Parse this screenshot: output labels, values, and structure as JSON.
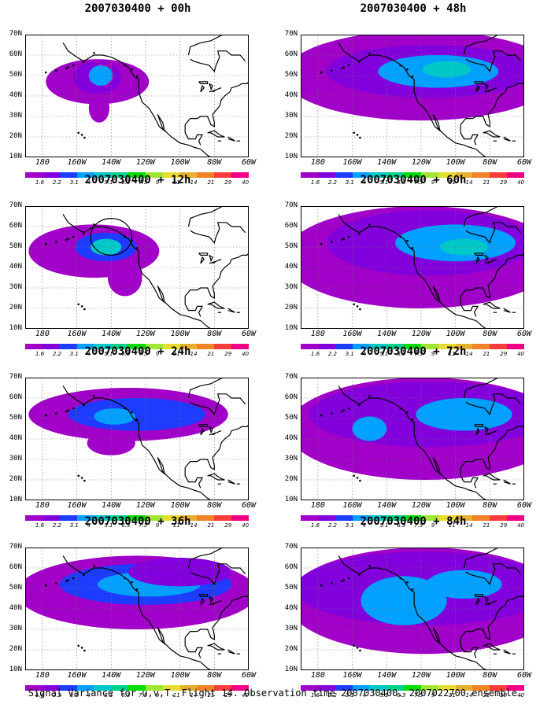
{
  "caption": "Signal Variance for u,v,T. Flight 14. Observation time 2007030400. 2007022700 ensemble.",
  "colors": {
    "levels": [
      "#a000c8",
      "#8200dc",
      "#1e3cff",
      "#00a0ff",
      "#00c8c8",
      "#00d28c",
      "#00dc00",
      "#a0e632",
      "#e6dc32",
      "#e6af2d",
      "#f08228",
      "#fa3c3c",
      "#f00082"
    ]
  },
  "chart_data": {
    "type": "heatmap",
    "ylim": [
      "10N",
      "70N"
    ],
    "xlim": [
      "170E",
      "60W"
    ],
    "y_ticks": [
      "70N",
      "60N",
      "50N",
      "40N",
      "30N",
      "20N",
      "10N"
    ],
    "x_ticks": [
      "180",
      "160W",
      "140W",
      "120W",
      "100W",
      "80W",
      "60W"
    ],
    "colorbar_labels": [
      "1.6",
      "2.2",
      "3.1",
      "4",
      "5.1",
      "6.3",
      "7.5",
      "9",
      "11",
      "14",
      "21",
      "29",
      "40"
    ],
    "panels": [
      {
        "title": "2007030400 + 00h",
        "max_level": 4,
        "blobs": [
          {
            "lon": -148,
            "lat": 47,
            "rx": 30,
            "ry": 11,
            "lvl": 0
          },
          {
            "lon": -148,
            "lat": 49,
            "rx": 14,
            "ry": 8,
            "lvl": 1
          },
          {
            "lon": -146,
            "lat": 50,
            "rx": 7,
            "ry": 5,
            "lvl": 3
          },
          {
            "lon": -147,
            "lat": 34,
            "rx": 6,
            "ry": 7,
            "lvl": 0
          }
        ],
        "flight_track": [
          [
            -150,
            58
          ],
          [
            -146,
            55
          ],
          [
            -140,
            55
          ],
          [
            -139,
            48
          ],
          [
            -144,
            44
          ]
        ]
      },
      {
        "title": "2007030400 + 12h",
        "max_level": 5,
        "blobs": [
          {
            "lon": -150,
            "lat": 48,
            "rx": 38,
            "ry": 13,
            "lvl": 0
          },
          {
            "lon": -132,
            "lat": 35,
            "rx": 10,
            "ry": 9,
            "lvl": 0
          },
          {
            "lon": -143,
            "lat": 50,
            "rx": 18,
            "ry": 7,
            "lvl": 2
          },
          {
            "lon": -143,
            "lat": 50,
            "rx": 9,
            "ry": 4,
            "lvl": 4
          }
        ],
        "circle": {
          "lon": -140,
          "lat": 55,
          "rx": 12,
          "ry": 9
        }
      },
      {
        "title": "2007030400 + 24h",
        "max_level": 5,
        "blobs": [
          {
            "lon": -130,
            "lat": 52,
            "rx": 58,
            "ry": 13,
            "lvl": 0
          },
          {
            "lon": -125,
            "lat": 52,
            "rx": 40,
            "ry": 8,
            "lvl": 2
          },
          {
            "lon": -138,
            "lat": 51,
            "rx": 12,
            "ry": 4,
            "lvl": 3
          },
          {
            "lon": -140,
            "lat": 38,
            "rx": 14,
            "ry": 6,
            "lvl": 0
          }
        ]
      },
      {
        "title": "2007030400 + 36h",
        "max_level": 5,
        "blobs": [
          {
            "lon": -125,
            "lat": 48,
            "rx": 70,
            "ry": 18,
            "lvl": 0
          },
          {
            "lon": -120,
            "lat": 52,
            "rx": 50,
            "ry": 10,
            "lvl": 2
          },
          {
            "lon": -118,
            "lat": 52,
            "rx": 30,
            "ry": 6,
            "lvl": 3
          },
          {
            "lon": -100,
            "lat": 58,
            "rx": 30,
            "ry": 7,
            "lvl": 1
          }
        ]
      },
      {
        "title": "2007030400 + 48h",
        "max_level": 5,
        "blobs": [
          {
            "lon": -120,
            "lat": 50,
            "rx": 80,
            "ry": 22,
            "lvl": 0
          },
          {
            "lon": -115,
            "lat": 52,
            "rx": 60,
            "ry": 13,
            "lvl": 1
          },
          {
            "lon": -110,
            "lat": 52,
            "rx": 35,
            "ry": 8,
            "lvl": 3
          },
          {
            "lon": -105,
            "lat": 53,
            "rx": 14,
            "ry": 4,
            "lvl": 4
          }
        ]
      },
      {
        "title": "2007030400 + 60h",
        "max_level": 5,
        "blobs": [
          {
            "lon": -120,
            "lat": 45,
            "rx": 80,
            "ry": 25,
            "lvl": 0
          },
          {
            "lon": -115,
            "lat": 52,
            "rx": 60,
            "ry": 16,
            "lvl": 1
          },
          {
            "lon": -100,
            "lat": 52,
            "rx": 35,
            "ry": 9,
            "lvl": 3
          },
          {
            "lon": -95,
            "lat": 50,
            "rx": 14,
            "ry": 4,
            "lvl": 4
          }
        ]
      },
      {
        "title": "2007030400 + 72h",
        "max_level": 5,
        "blobs": [
          {
            "lon": -118,
            "lat": 45,
            "rx": 80,
            "ry": 25,
            "lvl": 0
          },
          {
            "lon": -115,
            "lat": 52,
            "rx": 70,
            "ry": 16,
            "lvl": 1
          },
          {
            "lon": -95,
            "lat": 52,
            "rx": 28,
            "ry": 8,
            "lvl": 3
          },
          {
            "lon": -150,
            "lat": 45,
            "rx": 10,
            "ry": 6,
            "lvl": 3
          }
        ]
      },
      {
        "title": "2007030400 + 84h",
        "max_level": 5,
        "blobs": [
          {
            "lon": -118,
            "lat": 44,
            "rx": 80,
            "ry": 26,
            "lvl": 0
          },
          {
            "lon": -118,
            "lat": 50,
            "rx": 75,
            "ry": 18,
            "lvl": 1
          },
          {
            "lon": -130,
            "lat": 44,
            "rx": 25,
            "ry": 12,
            "lvl": 3
          },
          {
            "lon": -95,
            "lat": 52,
            "rx": 22,
            "ry": 7,
            "lvl": 3
          }
        ]
      }
    ]
  }
}
